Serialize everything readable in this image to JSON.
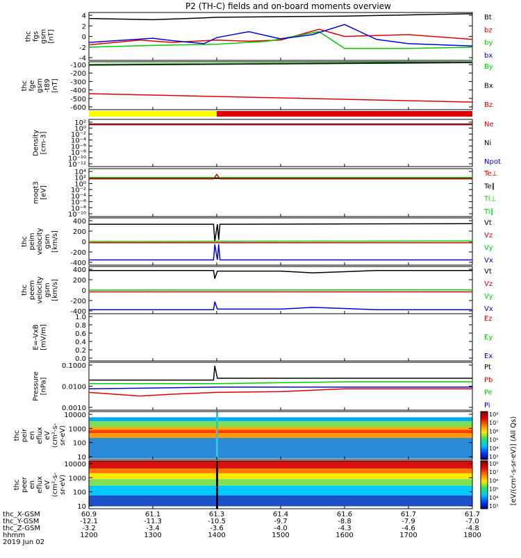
{
  "title": "P2 (TH-C) fields and on-board moments overview",
  "colors": {
    "black": "#000000",
    "red": "#dd0000",
    "green": "#00cc00",
    "blue": "#0000dd",
    "yellow": "#ffff00"
  },
  "chart_data": [
    {
      "type": "line",
      "ylabel": [
        "thc",
        "fgs",
        "gsm",
        "[nT]"
      ],
      "yticks": [
        "4",
        "2",
        "0",
        "-2",
        "-4"
      ],
      "ylim": [
        -4,
        4
      ],
      "legend": [
        {
          "name": "Bt",
          "color": "black"
        },
        {
          "name": "bz",
          "color": "red"
        },
        {
          "name": "by",
          "color": "green"
        },
        {
          "name": "bx",
          "color": "blue"
        }
      ],
      "series": [
        {
          "name": "Bt",
          "color": "black",
          "x": [
            1200,
            1300,
            1380,
            1400,
            1500,
            1600,
            1700,
            1800
          ],
          "y": [
            3.0,
            2.8,
            3.1,
            3.2,
            3.3,
            3.4,
            3.6,
            3.8
          ]
        },
        {
          "name": "bz",
          "color": "red",
          "x": [
            1200,
            1280,
            1330,
            1400,
            1450,
            1500,
            1560,
            1600,
            1700,
            1800
          ],
          "y": [
            -1.4,
            -0.6,
            -1.0,
            -0.6,
            -0.8,
            -0.6,
            1.2,
            0.0,
            0.3,
            -0.5
          ]
        },
        {
          "name": "by",
          "color": "green",
          "x": [
            1200,
            1300,
            1400,
            1480,
            1560,
            1600,
            1700,
            1800
          ],
          "y": [
            -1.8,
            -1.5,
            -1.3,
            -0.8,
            0.8,
            -2.0,
            -2.0,
            -1.8
          ]
        },
        {
          "name": "bx",
          "color": "blue",
          "x": [
            1200,
            1300,
            1330,
            1380,
            1400,
            1450,
            1500,
            1550,
            1600,
            1650,
            1700,
            1800
          ],
          "y": [
            -1.0,
            -0.3,
            -0.7,
            -1.2,
            -0.2,
            0.8,
            -0.4,
            0.3,
            2.0,
            -0.5,
            -1.2,
            -1.6
          ]
        }
      ]
    },
    {
      "type": "line",
      "ylabel": [
        "thc",
        "fge",
        "gsm",
        "-t89",
        "[nT]"
      ],
      "yticks": [
        "-100",
        "-200",
        "-300",
        "-400",
        "-500",
        "-600"
      ],
      "ylim": [
        -650,
        -80
      ],
      "legend": [
        {
          "name": "By",
          "color": "green"
        },
        {
          "name": "Bx",
          "color": "black"
        },
        {
          "name": "Bz",
          "color": "red"
        }
      ],
      "series": [
        {
          "name": "By",
          "color": "green",
          "x": [
            1200,
            1800
          ],
          "y": [
            -110,
            -85
          ]
        },
        {
          "name": "Bx",
          "color": "black",
          "x": [
            1200,
            1800
          ],
          "y": [
            -120,
            -90
          ]
        },
        {
          "name": "Bz",
          "color": "red",
          "x": [
            1200,
            1800
          ],
          "y": [
            -460,
            -560
          ]
        }
      ]
    },
    {
      "type": "line",
      "log": true,
      "ylabel": [
        "Density",
        "[cm-3]"
      ],
      "yticks": [
        "10²",
        "10⁰",
        "10⁻²",
        "10⁻⁴",
        "10⁻⁶",
        "10⁻⁸",
        "10⁻¹⁰",
        "10⁻¹²"
      ],
      "ylim": [
        -13,
        2
      ],
      "legend": [
        {
          "name": "Ne",
          "color": "red"
        },
        {
          "name": "Ni",
          "color": "black"
        },
        {
          "name": "Npot",
          "color": "blue"
        }
      ],
      "series": [
        {
          "name": "Ni",
          "color": "black",
          "x": [
            1200,
            1800
          ],
          "y": [
            0.5,
            0.5
          ]
        },
        {
          "name": "Ne",
          "color": "red",
          "x": [
            1200,
            1800
          ],
          "y": [
            0.3,
            0.3
          ]
        }
      ]
    },
    {
      "type": "line",
      "log": true,
      "ylabel": [
        "moqt3",
        "[eV]"
      ],
      "yticks": [
        "10⁴",
        "10²",
        "10⁰",
        "10⁻²",
        "10⁻⁴",
        "10⁻⁶",
        "10⁻⁸",
        "10⁻¹⁰"
      ],
      "ylim": [
        -11,
        4
      ],
      "legend": [
        {
          "name": "Te⊥",
          "color": "red"
        },
        {
          "name": "Te∥",
          "color": "black"
        },
        {
          "name": "Ti⊥",
          "color": "green"
        },
        {
          "name": "Ti∥",
          "color": "green"
        }
      ],
      "series": [
        {
          "name": "Ti∥",
          "color": "green",
          "x": [
            1200,
            1800
          ],
          "y": [
            1.2,
            1.2
          ]
        },
        {
          "name": "Te∥",
          "color": "black",
          "x": [
            1200,
            1800
          ],
          "y": [
            0.9,
            0.9
          ]
        },
        {
          "name": "Te⊥",
          "color": "red",
          "x": [
            1200,
            1395,
            1400,
            1405,
            1800
          ],
          "y": [
            0.8,
            0.8,
            2.2,
            0.8,
            0.8
          ]
        }
      ]
    },
    {
      "type": "line",
      "ylabel": [
        "thc",
        "peim",
        "velocity",
        "gsm",
        "[km/s]"
      ],
      "yticks": [
        "400",
        "200",
        "0",
        "-200",
        "-400"
      ],
      "ylim": [
        -410,
        410
      ],
      "legend": [
        {
          "name": "Vt",
          "color": "black"
        },
        {
          "name": "Vz",
          "color": "red"
        },
        {
          "name": "Vy",
          "color": "green"
        },
        {
          "name": "Vx",
          "color": "blue"
        }
      ],
      "series": [
        {
          "name": "Vt",
          "color": "black",
          "x": [
            1200,
            1395,
            1397,
            1401,
            1403,
            1405,
            1800
          ],
          "y": [
            300,
            300,
            0,
            300,
            30,
            300,
            310
          ]
        },
        {
          "name": "Vz",
          "color": "red",
          "x": [
            1200,
            1800
          ],
          "y": [
            -20,
            -20
          ]
        },
        {
          "name": "Vy",
          "color": "green",
          "x": [
            1200,
            1800
          ],
          "y": [
            0,
            10
          ]
        },
        {
          "name": "Vx",
          "color": "blue",
          "x": [
            1200,
            1395,
            1397,
            1401,
            1403,
            1405,
            1800
          ],
          "y": [
            -320,
            -320,
            -50,
            -320,
            -50,
            -320,
            -320
          ]
        }
      ]
    },
    {
      "type": "line",
      "ylabel": [
        "thc",
        "peem",
        "velocity",
        "gsm",
        "[km/s]"
      ],
      "yticks": [
        "400",
        "200",
        "0",
        "-200",
        "-400"
      ],
      "ylim": [
        -410,
        410
      ],
      "legend": [
        {
          "name": "Vt",
          "color": "black"
        },
        {
          "name": "Vz",
          "color": "red"
        },
        {
          "name": "Vy",
          "color": "green"
        },
        {
          "name": "Vx",
          "color": "blue"
        }
      ],
      "series": [
        {
          "name": "Vt",
          "color": "black",
          "x": [
            1200,
            1395,
            1397,
            1401,
            1500,
            1550,
            1600,
            1650,
            1800
          ],
          "y": [
            340,
            340,
            200,
            330,
            330,
            300,
            320,
            340,
            340
          ]
        },
        {
          "name": "Vz",
          "color": "red",
          "x": [
            1200,
            1800
          ],
          "y": [
            -30,
            -30
          ]
        },
        {
          "name": "Vy",
          "color": "green",
          "x": [
            1200,
            1800
          ],
          "y": [
            0,
            5
          ]
        },
        {
          "name": "Vx",
          "color": "blue",
          "x": [
            1200,
            1395,
            1397,
            1401,
            1500,
            1550,
            1600,
            1650,
            1800
          ],
          "y": [
            -340,
            -340,
            -200,
            -330,
            -330,
            -300,
            -320,
            -340,
            -340
          ]
        }
      ]
    },
    {
      "type": "line",
      "ylabel": [
        "E=-VxB",
        "[mV/m]"
      ],
      "yticks": [
        "1.0",
        "0.8",
        "0.6",
        "0.4",
        "0.2",
        "0.0"
      ],
      "ylim": [
        0,
        1
      ],
      "legend": [
        {
          "name": "Ez",
          "color": "red"
        },
        {
          "name": "Ey",
          "color": "green"
        },
        {
          "name": "Ex",
          "color": "blue"
        }
      ],
      "series": []
    },
    {
      "type": "line",
      "log": true,
      "ylabel": [
        "Pressure",
        "[nPa]"
      ],
      "yticks": [
        "0.1000",
        "0.0100",
        "0.0010"
      ],
      "ylim": [
        -3.5,
        -0.8
      ],
      "legend": [
        {
          "name": "Pt",
          "color": "black"
        },
        {
          "name": "Pb",
          "color": "red"
        },
        {
          "name": "Pe",
          "color": "green"
        },
        {
          "name": "Pi",
          "color": "blue"
        }
      ],
      "series": [
        {
          "name": "Pt",
          "color": "black",
          "x": [
            1200,
            1395,
            1397,
            1401,
            1500,
            1800
          ],
          "y": [
            -1.8,
            -1.8,
            -1.0,
            -1.7,
            -1.7,
            -1.7
          ]
        },
        {
          "name": "Pe",
          "color": "green",
          "x": [
            1200,
            1400,
            1600,
            1800
          ],
          "y": [
            -2.0,
            -2.0,
            -1.9,
            -1.9
          ]
        },
        {
          "name": "Pi",
          "color": "blue",
          "x": [
            1200,
            1400,
            1800
          ],
          "y": [
            -2.3,
            -2.2,
            -2.2
          ]
        },
        {
          "name": "Pb",
          "color": "red",
          "x": [
            1200,
            1280,
            1330,
            1400,
            1500,
            1600,
            1800
          ],
          "y": [
            -2.5,
            -2.7,
            -2.6,
            -2.5,
            -2.45,
            -2.3,
            -2.3
          ]
        }
      ]
    },
    {
      "type": "heatmap",
      "ylabel": [
        "thc",
        "peir",
        "en",
        "eflux",
        "eV",
        "(cm²-s-",
        "sr-eV)"
      ],
      "yticks": [
        "10000",
        "1000",
        "100",
        "10"
      ],
      "ylim": [
        5,
        20000
      ]
    },
    {
      "type": "heatmap",
      "ylabel": [
        "thc",
        "peer",
        "en",
        "eflux",
        "eV",
        "(cm²-s-",
        "sr-eV)"
      ],
      "yticks": [
        "10000",
        "1000",
        "100",
        "10"
      ],
      "ylim": [
        5,
        20000
      ]
    }
  ],
  "colorbar": {
    "label": "[eV/(cm²-s-sr-eV)] (All Qs)",
    "upper_ticks": [
      "10⁸",
      "10⁷",
      "10⁶",
      "10⁵",
      "10⁴",
      "10³"
    ],
    "lower_ticks": [
      "10⁸",
      "10⁷",
      "10⁶",
      "10⁵",
      "10⁴",
      "10³"
    ]
  },
  "xaxis": {
    "row_labels": [
      "thc_X-GSM",
      "thc_Y-GSM",
      "thc_Z-GSM",
      "hhmm",
      "2019 Jun 02"
    ],
    "ticks": [
      {
        "x": 1200,
        "rows": [
          "60.9",
          "-12.1",
          "-3.2",
          "1200"
        ]
      },
      {
        "x": 1300,
        "rows": [
          "61.1",
          "-11.3",
          "-3.4",
          "1300"
        ]
      },
      {
        "x": 1400,
        "rows": [
          "61.3",
          "-10.5",
          "-3.6",
          "1400"
        ]
      },
      {
        "x": 1500,
        "rows": [
          "61.4",
          "-9.7",
          "-4.0",
          "1500"
        ]
      },
      {
        "x": 1600,
        "rows": [
          "61.6",
          "-8.8",
          "-4.3",
          "1600"
        ]
      },
      {
        "x": 1700,
        "rows": [
          "61.7",
          "-7.9",
          "-4.6",
          "1700"
        ]
      },
      {
        "x": 1800,
        "rows": [
          "61.7",
          "-7.0",
          "-4.8",
          "1800"
        ]
      }
    ]
  }
}
